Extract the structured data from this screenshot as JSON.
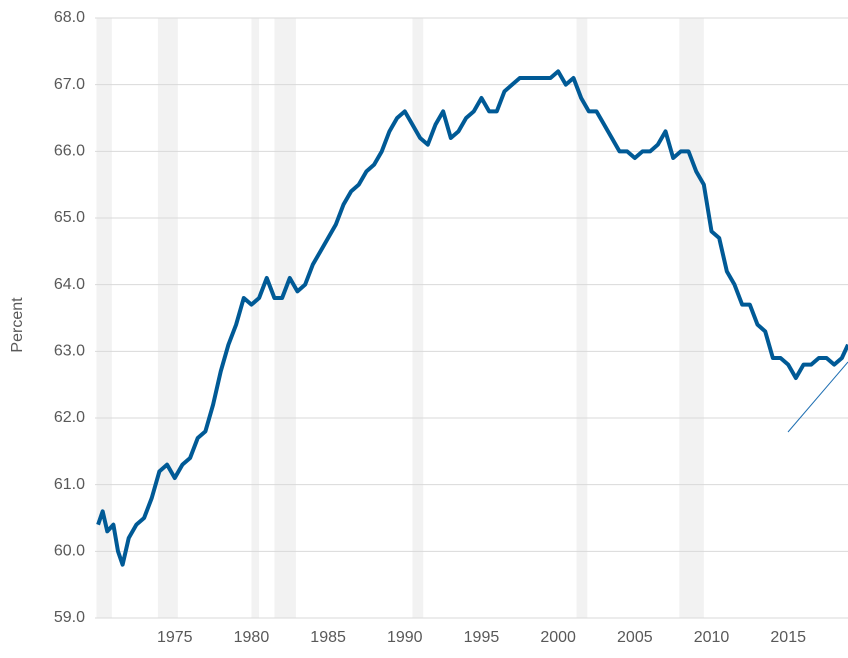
{
  "chart_data": {
    "type": "line",
    "ylabel": "Percent",
    "x": [
      1970.0,
      1970.3,
      1970.6,
      1971.0,
      1971.3,
      1971.6,
      1972.0,
      1972.5,
      1973.0,
      1973.5,
      1974.0,
      1974.5,
      1975.0,
      1975.5,
      1976.0,
      1976.5,
      1977.0,
      1977.5,
      1978.0,
      1978.5,
      1979.0,
      1979.5,
      1980.0,
      1980.5,
      1981.0,
      1981.5,
      1982.0,
      1982.5,
      1983.0,
      1983.5,
      1984.0,
      1984.5,
      1985.0,
      1985.5,
      1986.0,
      1986.5,
      1987.0,
      1987.5,
      1988.0,
      1988.5,
      1989.0,
      1989.5,
      1990.0,
      1990.5,
      1991.0,
      1991.5,
      1992.0,
      1992.5,
      1993.0,
      1993.5,
      1994.0,
      1994.5,
      1995.0,
      1995.5,
      1996.0,
      1996.5,
      1997.0,
      1997.5,
      1998.0,
      1998.5,
      1999.0,
      1999.5,
      2000.0,
      2000.5,
      2001.0,
      2001.5,
      2002.0,
      2002.5,
      2003.0,
      2003.5,
      2004.0,
      2004.5,
      2005.0,
      2005.5,
      2006.0,
      2006.5,
      2007.0,
      2007.5,
      2008.0,
      2008.5,
      2009.0,
      2009.5,
      2010.0,
      2010.5,
      2011.0,
      2011.5,
      2012.0,
      2012.5,
      2013.0,
      2013.5,
      2014.0,
      2014.5,
      2015.0,
      2015.5,
      2016.0,
      2016.5,
      2017.0,
      2017.5,
      2018.0,
      2018.5,
      2018.9
    ],
    "series": [
      {
        "color": "#005a96",
        "values": [
          60.4,
          60.6,
          60.3,
          60.4,
          60.0,
          59.8,
          60.2,
          60.4,
          60.5,
          60.8,
          61.2,
          61.3,
          61.1,
          61.3,
          61.4,
          61.7,
          61.8,
          62.2,
          62.7,
          63.1,
          63.4,
          63.8,
          63.7,
          63.8,
          64.1,
          63.8,
          63.8,
          64.1,
          63.9,
          64.0,
          64.3,
          64.5,
          64.7,
          64.9,
          65.2,
          65.4,
          65.5,
          65.7,
          65.8,
          66.0,
          66.3,
          66.5,
          66.6,
          66.4,
          66.2,
          66.1,
          66.4,
          66.6,
          66.2,
          66.3,
          66.5,
          66.6,
          66.8,
          66.6,
          66.6,
          66.9,
          67.0,
          67.1,
          67.1,
          67.1,
          67.1,
          67.1,
          67.2,
          67.0,
          67.1,
          66.8,
          66.6,
          66.6,
          66.4,
          66.2,
          66.0,
          66.0,
          65.9,
          66.0,
          66.0,
          66.1,
          66.3,
          65.9,
          66.0,
          66.0,
          65.7,
          65.5,
          64.8,
          64.7,
          64.2,
          64.0,
          63.7,
          63.7,
          63.4,
          63.3,
          62.9,
          62.9,
          62.8,
          62.6,
          62.8,
          62.8,
          62.9,
          62.9,
          62.8,
          62.9,
          63.1
        ]
      }
    ],
    "recessions": [
      [
        1969.9,
        1970.9
      ],
      [
        1973.9,
        1975.2
      ],
      [
        1980.0,
        1980.5
      ],
      [
        1981.5,
        1982.9
      ],
      [
        1990.5,
        1991.2
      ],
      [
        2001.2,
        2001.9
      ],
      [
        2007.9,
        2009.5
      ]
    ],
    "xlim": [
      1969.8,
      2018.9
    ],
    "xticks": [
      1975,
      1980,
      1985,
      1990,
      1995,
      2000,
      2005,
      2010,
      2015
    ],
    "ylim": [
      59,
      68
    ],
    "yticks": [
      {
        "value": 59,
        "label": "59.0"
      },
      {
        "value": 60,
        "label": "60.0"
      },
      {
        "value": 61,
        "label": "61.0"
      },
      {
        "value": 62,
        "label": "62.0"
      },
      {
        "value": 63,
        "label": "63.0"
      },
      {
        "value": 64,
        "label": "64.0"
      },
      {
        "value": 65,
        "label": "65.0"
      },
      {
        "value": 66,
        "label": "66.0"
      },
      {
        "value": 67,
        "label": "67.0"
      },
      {
        "value": 68,
        "label": "68.0"
      }
    ],
    "grid": true
  }
}
